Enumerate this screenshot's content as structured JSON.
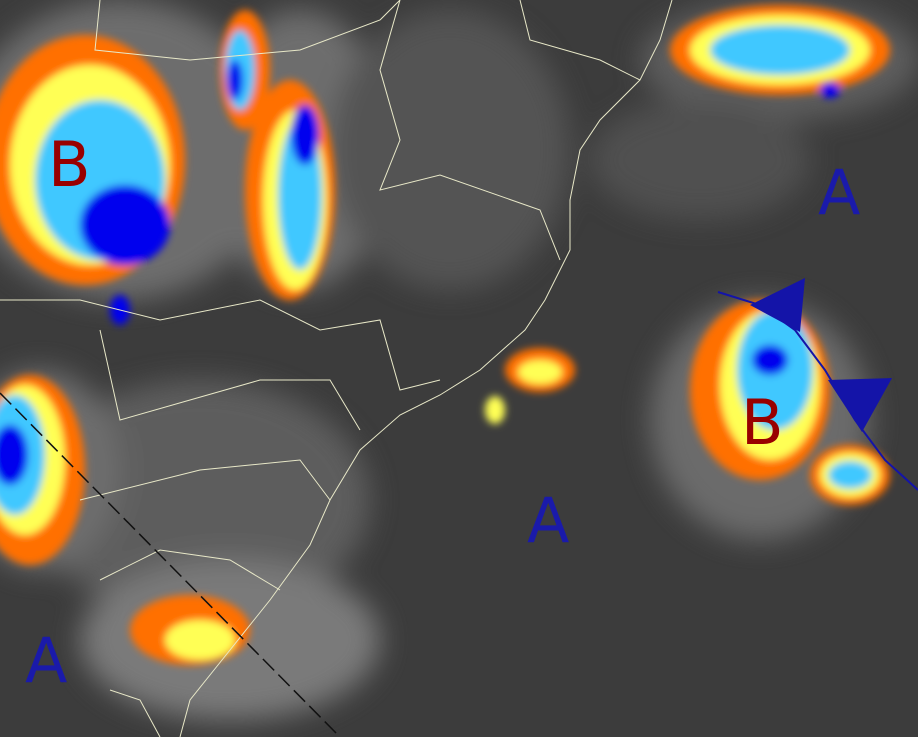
{
  "colors": {
    "background": "#3c3c3c",
    "cloud_gray": "#8a8a8a",
    "orange": "#ff7000",
    "yellow": "#ffff55",
    "cyan": "#40c8ff",
    "blue": "#0000ee",
    "high_label": "#1a1aaa",
    "low_label": "#990000",
    "front": "#1414a8",
    "borders": "#e8e8c8"
  },
  "pressure_labels": [
    {
      "text": "B",
      "type": "low"
    },
    {
      "text": "A",
      "type": "high"
    },
    {
      "text": "A",
      "type": "high"
    },
    {
      "text": "B",
      "type": "low"
    },
    {
      "text": "A",
      "type": "high"
    }
  ],
  "features": {
    "cold_front": "cold-front",
    "dashed_line": "trough-line"
  }
}
